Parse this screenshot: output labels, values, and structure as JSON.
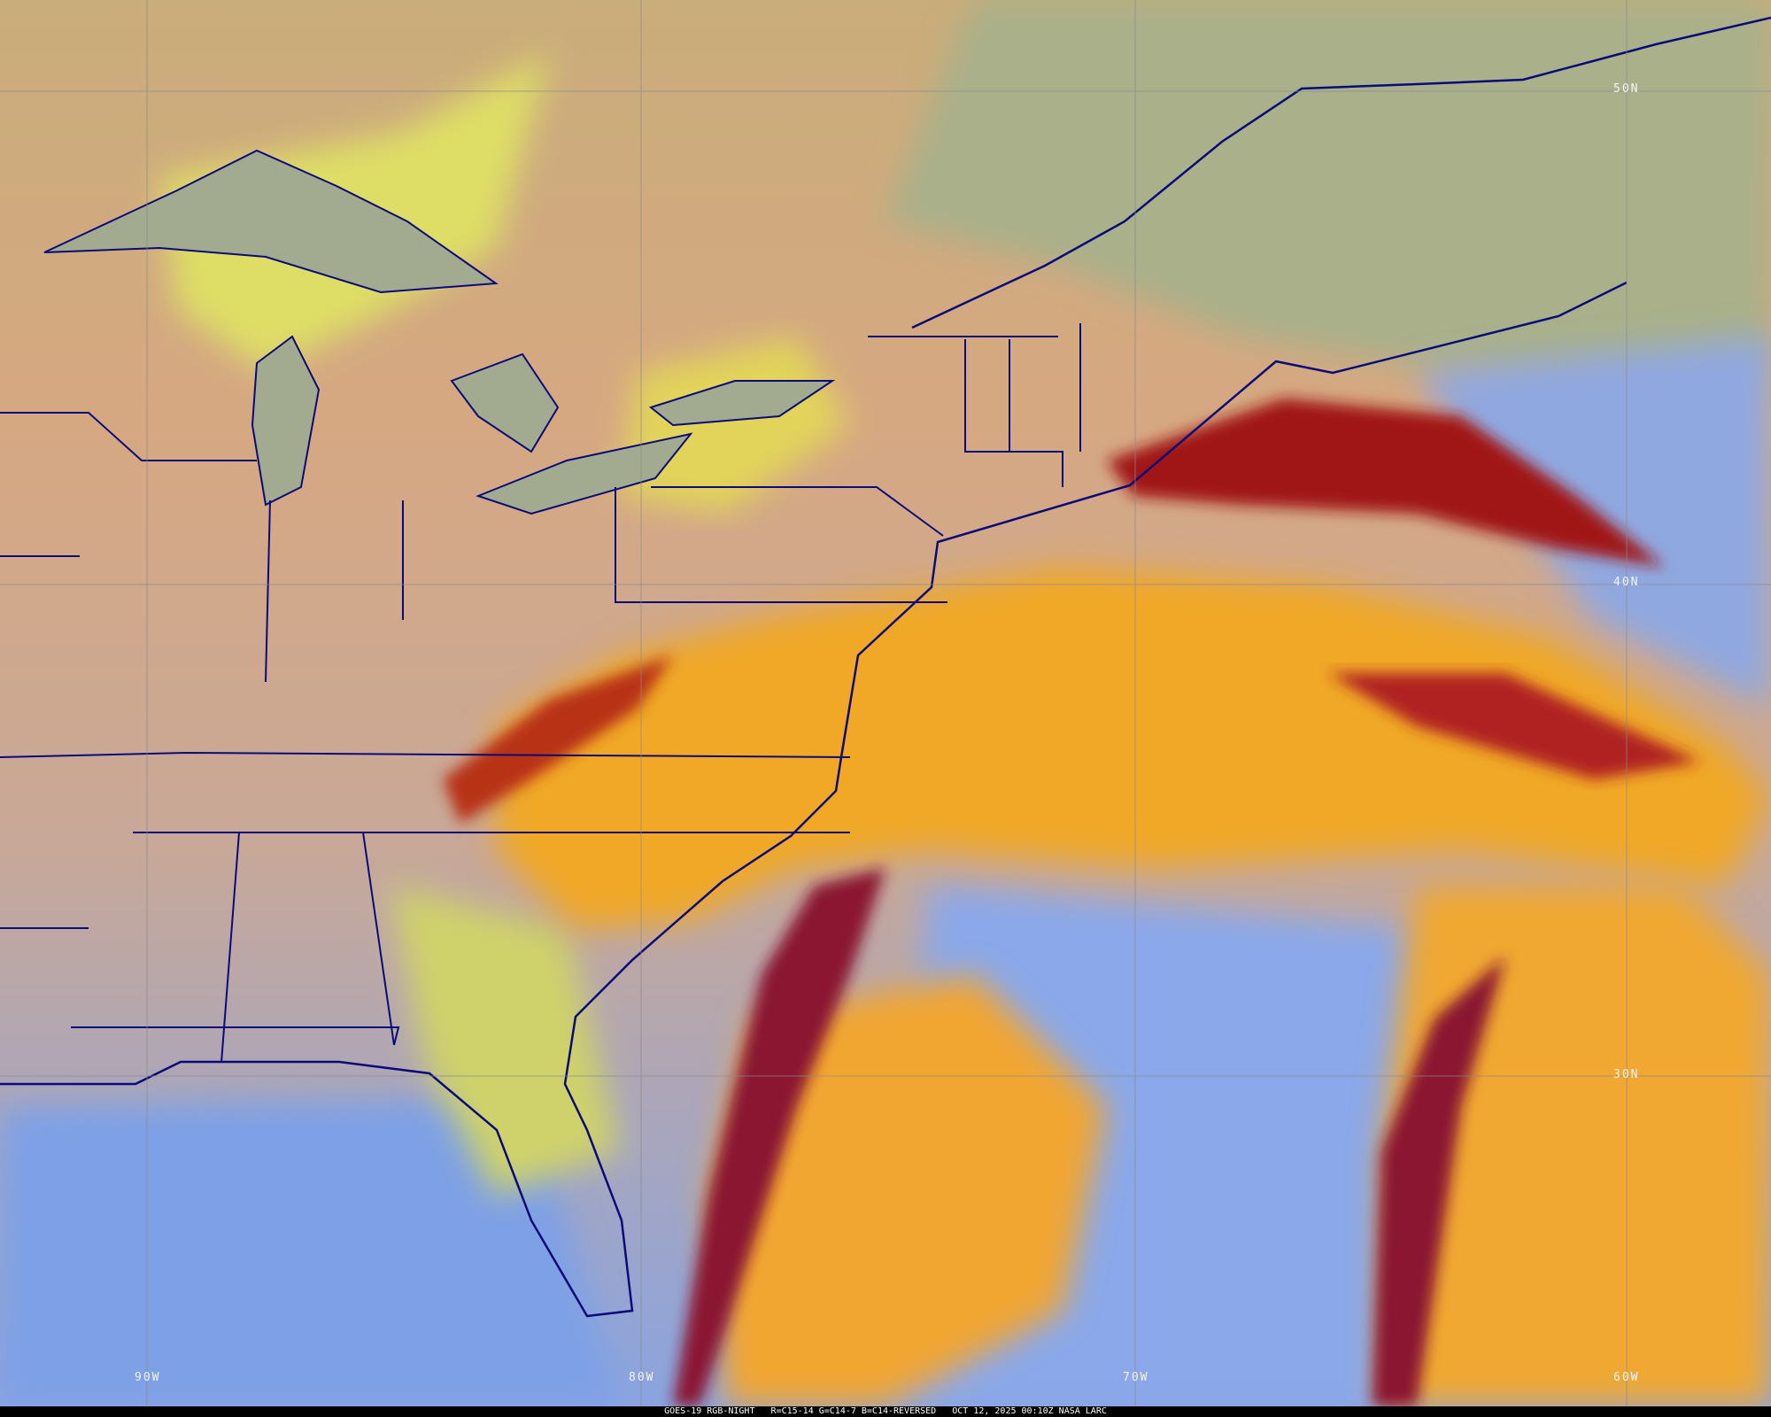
{
  "caption": {
    "satellite": "GOES-19 RGB-NIGHT",
    "channels": "R=C15-14 G=C14-7 B=C14-REVERSED",
    "datetime": "OCT 12, 2025 00:10Z",
    "credit": "NASA LARC"
  },
  "grid_labels": {
    "lat_50": "50N",
    "lat_40": "40N",
    "lat_30": "30N",
    "lon_90": "90W",
    "lon_80": "80W",
    "lon_70": "70W",
    "lon_60": "60W"
  },
  "colors": {
    "land_clear": "#d9a880",
    "north_cloudfree": "#a9b08a",
    "ocean_clear": "#7ea0e6",
    "low_cloud": "#dede66",
    "high_cloud": "#f0a828",
    "deep_cloud": "#a01818",
    "borders": "#0a0a78",
    "gridlines": "#8a8a8a"
  }
}
